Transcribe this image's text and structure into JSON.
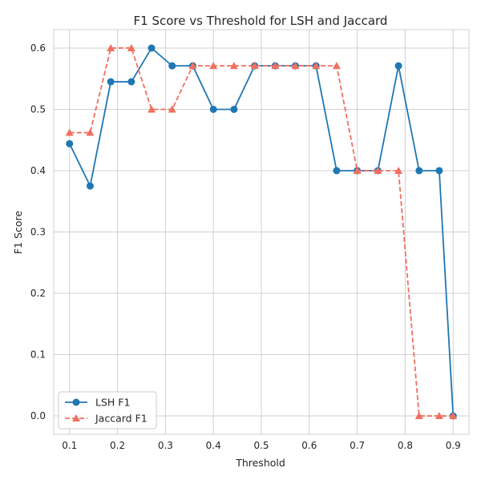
{
  "chart_data": {
    "type": "line",
    "title": "F1 Score vs Threshold for LSH and Jaccard",
    "xlabel": "Threshold",
    "ylabel": "F1 Score",
    "xlim": [
      0.067,
      0.933
    ],
    "ylim": [
      -0.03,
      0.63
    ],
    "xticks": [
      0.1,
      0.2,
      0.3,
      0.4,
      0.5,
      0.6,
      0.7,
      0.8,
      0.9
    ],
    "xtick_labels": [
      "0.1",
      "0.2",
      "0.3",
      "0.4",
      "0.5",
      "0.6",
      "0.7",
      "0.8",
      "0.9"
    ],
    "yticks": [
      0.0,
      0.1,
      0.2,
      0.3,
      0.4,
      0.5,
      0.6
    ],
    "ytick_labels": [
      "0.0",
      "0.1",
      "0.2",
      "0.3",
      "0.4",
      "0.5",
      "0.6"
    ],
    "grid": true,
    "legend_position": "lower-left",
    "x": [
      0.1,
      0.143,
      0.186,
      0.229,
      0.271,
      0.314,
      0.357,
      0.4,
      0.443,
      0.486,
      0.529,
      0.571,
      0.614,
      0.657,
      0.7,
      0.743,
      0.786,
      0.829,
      0.871,
      0.9
    ],
    "series": [
      {
        "name": "LSH F1",
        "color": "#1f77b4",
        "marker": "circle",
        "linestyle": "solid",
        "values": [
          0.444,
          0.375,
          0.545,
          0.545,
          0.6,
          0.571,
          0.571,
          0.5,
          0.5,
          0.571,
          0.571,
          0.571,
          0.571,
          0.4,
          0.4,
          0.4,
          0.571,
          0.4,
          0.4,
          0.0
        ]
      },
      {
        "name": "Jaccard F1",
        "color": "#f07060",
        "marker": "triangle",
        "linestyle": "dashed",
        "values": [
          0.462,
          0.462,
          0.6,
          0.6,
          0.5,
          0.5,
          0.571,
          0.571,
          0.571,
          0.571,
          0.571,
          0.571,
          0.571,
          0.571,
          0.4,
          0.4,
          0.4,
          0.0,
          0.0,
          0.0
        ]
      }
    ]
  }
}
